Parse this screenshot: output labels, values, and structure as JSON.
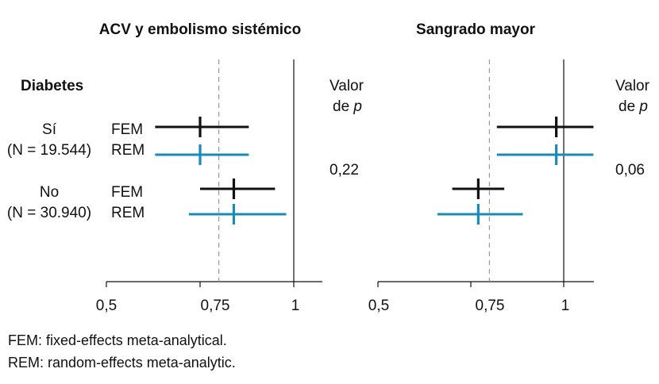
{
  "chart_data": [
    {
      "type": "forest",
      "title": "ACV y embolismo sistémico",
      "xlim": [
        0.5,
        1.08
      ],
      "reference_line": 1,
      "dashed_line": 0.8,
      "ticks": [
        {
          "value": 0.5,
          "label": "0,5"
        },
        {
          "value": 0.75,
          "label": "0,75"
        },
        {
          "value": 1,
          "label": "1"
        }
      ],
      "p_header": [
        "Valor",
        "de ",
        "p"
      ],
      "rows": [
        {
          "group": "Sí",
          "model": "FEM",
          "est": 0.75,
          "lo": 0.63,
          "hi": 0.88
        },
        {
          "group": "Sí",
          "model": "REM",
          "est": 0.75,
          "lo": 0.63,
          "hi": 0.88
        },
        {
          "group": "No",
          "model": "FEM",
          "est": 0.84,
          "lo": 0.75,
          "hi": 0.95
        },
        {
          "group": "No",
          "model": "REM",
          "est": 0.84,
          "lo": 0.72,
          "hi": 0.98
        }
      ],
      "p_values": [
        "0,22",
        "0,06"
      ]
    },
    {
      "type": "forest",
      "title": "Sangrado mayor",
      "xlim": [
        0.5,
        1.08
      ],
      "reference_line": 1,
      "dashed_line": 0.8,
      "ticks": [
        {
          "value": 0.5,
          "label": "0,5"
        },
        {
          "value": 0.75,
          "label": "0,75"
        },
        {
          "value": 1,
          "label": "1"
        }
      ],
      "p_header": [
        "Valor",
        "de ",
        "p"
      ],
      "rows": [
        {
          "group": "Sí",
          "model": "FEM",
          "est": 0.98,
          "lo": 0.82,
          "hi": 1.08
        },
        {
          "group": "Sí",
          "model": "REM",
          "est": 0.98,
          "lo": 0.82,
          "hi": 1.08
        },
        {
          "group": "No",
          "model": "FEM",
          "est": 0.77,
          "lo": 0.7,
          "hi": 0.84
        },
        {
          "group": "No",
          "model": "REM",
          "est": 0.77,
          "lo": 0.66,
          "hi": 0.89
        }
      ]
    }
  ],
  "row_labels": {
    "heading": "Diabetes",
    "groups": [
      {
        "name": "Sí",
        "n": "(N = 19.544)",
        "models": [
          "FEM",
          "REM"
        ]
      },
      {
        "name": "No",
        "n": "(N = 30.940)",
        "models": [
          "FEM",
          "REM"
        ]
      }
    ]
  },
  "footnotes": [
    "FEM: fixed-effects meta-analytical.",
    "REM: random-effects meta-analytic."
  ],
  "colors": {
    "fem": "#111111",
    "rem": "#1a8bb3",
    "axis": "#111111",
    "dashed": "#999999"
  }
}
